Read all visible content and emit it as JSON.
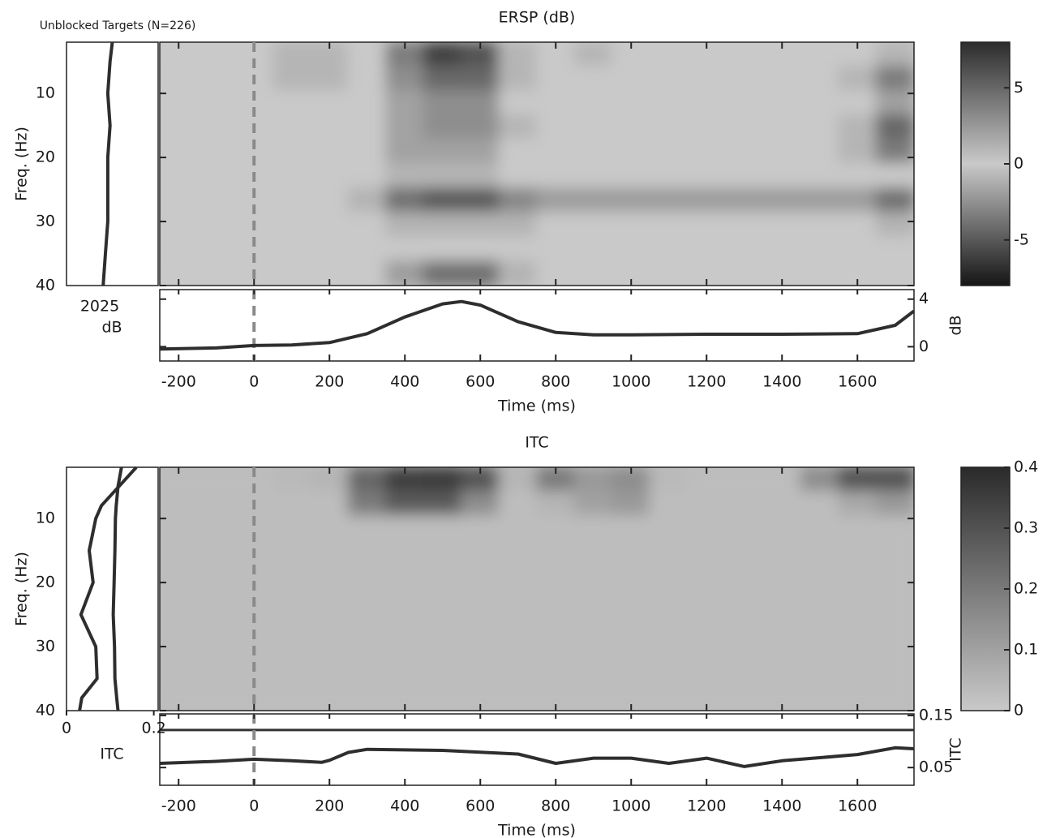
{
  "figure_title": "Unblocked Targets (N=226)",
  "chart_data": [
    {
      "type": "heatmap",
      "title": "ERSP (dB)",
      "ylabel": "Freq. (Hz)",
      "time_edges": [
        -250,
        -150,
        -50,
        50,
        150,
        250,
        350,
        450,
        550,
        650,
        750,
        850,
        950,
        1050,
        1150,
        1250,
        1350,
        1450,
        1550,
        1650,
        1750
      ],
      "freq_edges": [
        2,
        5.8,
        9.6,
        13.4,
        17.2,
        21,
        24.8,
        28.6,
        32.4,
        36.2,
        40
      ],
      "z": [
        [
          0,
          0,
          0,
          1,
          1,
          0,
          4,
          7,
          6,
          1,
          0,
          1,
          0,
          0,
          0,
          0,
          0,
          0,
          0,
          1
        ],
        [
          0,
          0,
          0,
          1,
          1,
          0,
          3,
          5,
          5,
          1,
          0,
          0,
          0,
          0,
          0,
          0,
          0,
          0,
          1,
          4
        ],
        [
          0,
          0,
          0,
          0,
          0,
          0,
          2,
          3,
          3,
          0,
          0,
          0,
          0,
          0,
          0,
          0,
          0,
          0,
          0,
          2
        ],
        [
          0,
          0,
          0,
          0,
          0,
          0,
          2,
          3,
          3,
          1,
          0,
          0,
          0,
          0,
          0,
          0,
          0,
          0,
          1,
          5
        ],
        [
          0,
          0,
          0,
          0,
          0,
          0,
          2,
          2,
          2,
          0,
          0,
          0,
          0,
          0,
          0,
          0,
          0,
          0,
          1,
          4
        ],
        [
          0,
          0,
          0,
          0,
          0,
          0,
          1,
          1,
          1,
          0,
          0,
          0,
          0,
          0,
          0,
          0,
          0,
          0,
          0,
          0
        ],
        [
          0,
          0,
          0,
          0,
          0,
          -1,
          -4,
          -5,
          -5,
          -3,
          -2,
          -2,
          -2,
          -2,
          -2,
          -2,
          -2,
          -2,
          -2,
          -4
        ],
        [
          0,
          0,
          0,
          0,
          0,
          0,
          -1,
          -1,
          -1,
          -1,
          0,
          0,
          0,
          0,
          0,
          0,
          0,
          0,
          0,
          -1
        ],
        [
          0,
          0,
          0,
          0,
          0,
          0,
          0,
          0,
          0,
          0,
          0,
          0,
          0,
          0,
          0,
          0,
          0,
          0,
          0,
          0
        ],
        [
          0,
          0,
          0,
          0,
          0,
          0,
          -2,
          -4,
          -4,
          -1,
          0,
          0,
          0,
          0,
          0,
          0,
          0,
          0,
          0,
          0
        ]
      ],
      "xlim": [
        -250,
        1750
      ],
      "xticks": [
        -200,
        0,
        200,
        400,
        600,
        800,
        1000,
        1200,
        1400,
        1600
      ],
      "ylim": [
        2,
        40
      ],
      "yticks": [
        10,
        20,
        30,
        40
      ],
      "clim": [
        -8,
        8
      ],
      "cticks": [
        -5,
        0,
        5
      ],
      "colormap": [
        "#151515",
        "#c9c9c9",
        "#2c2c2c"
      ],
      "marker_time": 0
    },
    {
      "type": "line",
      "x": [
        -250,
        -100,
        0,
        100,
        200,
        300,
        400,
        500,
        550,
        600,
        700,
        800,
        900,
        1000,
        1200,
        1400,
        1600,
        1700,
        1750
      ],
      "values": [
        -0.2,
        -0.1,
        0.1,
        0.15,
        0.35,
        1.1,
        2.5,
        3.6,
        3.8,
        3.5,
        2.1,
        1.2,
        1.0,
        1.0,
        1.05,
        1.05,
        1.1,
        1.8,
        3.0
      ],
      "xlim": [
        -250,
        1750
      ],
      "xticks": [
        -200,
        0,
        200,
        400,
        600,
        800,
        1000,
        1200,
        1400,
        1600
      ],
      "xlabel": "Time (ms)",
      "ylim": [
        -1.2,
        4.8
      ],
      "yticks": [
        0,
        4
      ],
      "ylabel": "dB",
      "color": "#2e2e2e",
      "marker_time": 0
    },
    {
      "type": "profile",
      "freqs": [
        2,
        5,
        10,
        15,
        20,
        25,
        30,
        35,
        40
      ],
      "series": [
        {
          "values": [
            20.0,
            19.9,
            19.8,
            19.9,
            19.8,
            19.8,
            19.8,
            19.7,
            19.6
          ]
        }
      ],
      "xlim": [
        18,
        22
      ],
      "ylim": [
        2,
        40
      ],
      "label": "2025",
      "unit": "dB",
      "color": "#2e2e2e"
    },
    {
      "type": "heatmap",
      "title": "ITC",
      "ylabel": "Freq. (Hz)",
      "time_edges": [
        -250,
        -150,
        -50,
        50,
        150,
        250,
        350,
        450,
        550,
        650,
        750,
        850,
        950,
        1050,
        1150,
        1250,
        1350,
        1450,
        1550,
        1650,
        1750
      ],
      "freq_edges": [
        2,
        5.8,
        9.6,
        13.4,
        17.2,
        21,
        24.8,
        28.6,
        32.4,
        36.2,
        40
      ],
      "z": [
        [
          0.03,
          0.03,
          0.03,
          0.04,
          0.05,
          0.25,
          0.35,
          0.36,
          0.3,
          0.05,
          0.2,
          0.12,
          0.15,
          0.04,
          0.03,
          0.03,
          0.03,
          0.15,
          0.3,
          0.3
        ],
        [
          0.03,
          0.03,
          0.03,
          0.03,
          0.03,
          0.2,
          0.28,
          0.28,
          0.15,
          0.03,
          0.05,
          0.1,
          0.12,
          0.03,
          0.03,
          0.03,
          0.03,
          0.03,
          0.08,
          0.12
        ],
        [
          0.03,
          0.03,
          0.03,
          0.03,
          0.03,
          0.03,
          0.03,
          0.03,
          0.03,
          0.03,
          0.03,
          0.03,
          0.03,
          0.03,
          0.03,
          0.03,
          0.03,
          0.03,
          0.03,
          0.03
        ],
        [
          0.03,
          0.03,
          0.03,
          0.03,
          0.03,
          0.03,
          0.03,
          0.03,
          0.03,
          0.03,
          0.03,
          0.03,
          0.03,
          0.03,
          0.03,
          0.03,
          0.03,
          0.03,
          0.03,
          0.03
        ],
        [
          0.03,
          0.03,
          0.03,
          0.03,
          0.03,
          0.03,
          0.03,
          0.03,
          0.03,
          0.03,
          0.03,
          0.03,
          0.03,
          0.03,
          0.03,
          0.03,
          0.03,
          0.03,
          0.03,
          0.03
        ],
        [
          0.03,
          0.03,
          0.03,
          0.03,
          0.03,
          0.03,
          0.03,
          0.03,
          0.03,
          0.03,
          0.03,
          0.03,
          0.03,
          0.03,
          0.03,
          0.03,
          0.03,
          0.03,
          0.03,
          0.03
        ],
        [
          0.03,
          0.03,
          0.03,
          0.03,
          0.03,
          0.03,
          0.03,
          0.03,
          0.03,
          0.03,
          0.03,
          0.03,
          0.03,
          0.03,
          0.03,
          0.03,
          0.03,
          0.03,
          0.03,
          0.03
        ],
        [
          0.03,
          0.03,
          0.03,
          0.03,
          0.03,
          0.03,
          0.03,
          0.03,
          0.03,
          0.03,
          0.03,
          0.03,
          0.03,
          0.03,
          0.03,
          0.03,
          0.03,
          0.03,
          0.03,
          0.03
        ],
        [
          0.03,
          0.03,
          0.03,
          0.03,
          0.03,
          0.03,
          0.03,
          0.03,
          0.03,
          0.03,
          0.03,
          0.03,
          0.03,
          0.03,
          0.03,
          0.03,
          0.03,
          0.03,
          0.03,
          0.03
        ],
        [
          0.03,
          0.03,
          0.03,
          0.03,
          0.03,
          0.03,
          0.03,
          0.03,
          0.03,
          0.03,
          0.03,
          0.03,
          0.03,
          0.03,
          0.03,
          0.03,
          0.03,
          0.03,
          0.03,
          0.03
        ]
      ],
      "xlim": [
        -250,
        1750
      ],
      "xticks": [
        -200,
        0,
        200,
        400,
        600,
        800,
        1000,
        1200,
        1400,
        1600
      ],
      "ylim": [
        2,
        40
      ],
      "yticks": [
        10,
        20,
        30,
        40
      ],
      "clim": [
        0,
        0.4
      ],
      "cticks": [
        0,
        0.1,
        0.2,
        0.3,
        0.4
      ],
      "colormap": [
        "#c9c9c9",
        "#2a2a2a"
      ],
      "marker_time": 0
    },
    {
      "type": "line",
      "x": [
        -250,
        -100,
        0,
        100,
        180,
        200,
        250,
        300,
        500,
        700,
        800,
        900,
        1000,
        1100,
        1200,
        1300,
        1400,
        1500,
        1600,
        1700,
        1750
      ],
      "values": [
        0.058,
        0.062,
        0.066,
        0.063,
        0.06,
        0.064,
        0.079,
        0.085,
        0.083,
        0.076,
        0.058,
        0.068,
        0.068,
        0.058,
        0.068,
        0.052,
        0.063,
        0.069,
        0.075,
        0.088,
        0.086
      ],
      "threshold": 0.122,
      "xlim": [
        -250,
        1750
      ],
      "xticks": [
        -200,
        0,
        200,
        400,
        600,
        800,
        1000,
        1200,
        1400,
        1600
      ],
      "xlabel": "Time (ms)",
      "ylim": [
        0.016,
        0.153
      ],
      "yticks": [
        0.05,
        0.15
      ],
      "ylabel": "ITC",
      "color": "#2e2e2e",
      "marker_time": 0
    },
    {
      "type": "profile",
      "freqs": [
        2,
        5,
        8,
        10,
        15,
        20,
        25,
        30,
        35,
        38,
        40
      ],
      "series": [
        {
          "values": [
            0.16,
            0.12,
            0.08,
            0.067,
            0.052,
            0.061,
            0.033,
            0.067,
            0.07,
            0.035,
            0.03
          ]
        },
        {
          "values": [
            0.126,
            0.118,
            0.114,
            0.112,
            0.111,
            0.109,
            0.107,
            0.11,
            0.111,
            0.115,
            0.118
          ]
        }
      ],
      "xlim": [
        0,
        0.21
      ],
      "xticks": [
        0,
        0.2
      ],
      "xlabel": "ITC",
      "ylim": [
        2,
        40
      ],
      "color": "#2e2e2e"
    }
  ]
}
